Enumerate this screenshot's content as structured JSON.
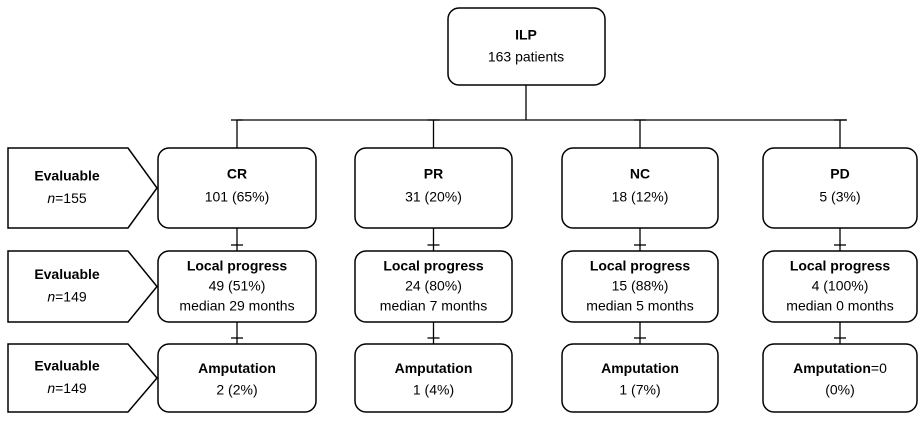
{
  "root": {
    "title": "ILP",
    "subtitle": "163 patients"
  },
  "rows": [
    {
      "label": "Evaluable",
      "n_symbol": "n",
      "n_value": "=155"
    },
    {
      "label": "Evaluable",
      "n_symbol": "n",
      "n_value": "=149"
    },
    {
      "label": "Evaluable",
      "n_symbol": "n",
      "n_value": "=149"
    }
  ],
  "columns": [
    {
      "response": {
        "title": "CR",
        "value": "101 (65%)"
      },
      "progress": {
        "title": "Local progress",
        "value": "49 (51%)",
        "median": "median 29 months"
      },
      "amputation": {
        "title": "Amputation",
        "value": "2 (2%)"
      }
    },
    {
      "response": {
        "title": "PR",
        "value": "31 (20%)"
      },
      "progress": {
        "title": "Local progress",
        "value": "24 (80%)",
        "median": "median 7 months"
      },
      "amputation": {
        "title": "Amputation",
        "value": "1 (4%)"
      }
    },
    {
      "response": {
        "title": "NC",
        "value": "18 (12%)"
      },
      "progress": {
        "title": "Local progress",
        "value": "15 (88%)",
        "median": "median 5 months"
      },
      "amputation": {
        "title": "Amputation",
        "value": "1 (7%)"
      }
    },
    {
      "response": {
        "title": "PD",
        "value": "5 (3%)"
      },
      "progress": {
        "title": "Local progress",
        "value": "4 (100%)",
        "median": "median 0 months"
      },
      "amputation": {
        "title": "Amputation",
        "title_suffix": "=0",
        "value": "(0%)"
      }
    }
  ]
}
